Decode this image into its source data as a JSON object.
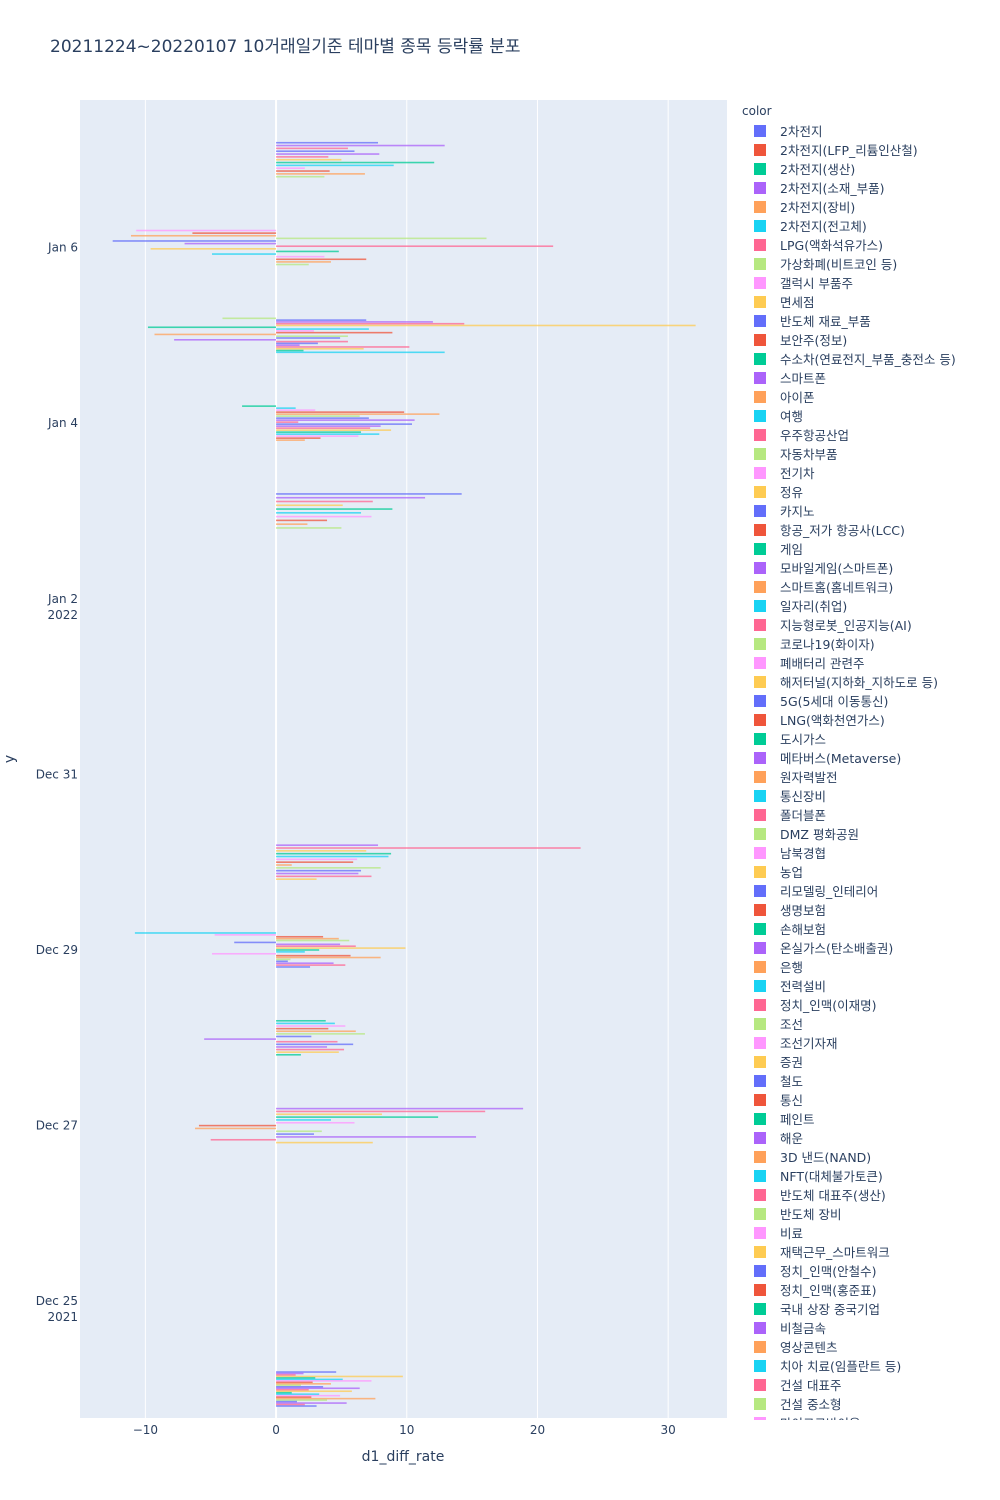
{
  "chart_data": {
    "type": "bar",
    "orientation": "horizontal",
    "title": "20211224~20220107 10거래일기준 테마별 종목 등락률 분포",
    "xlabel": "d1_diff_rate",
    "ylabel": "y",
    "legend_title": "color",
    "xlim": [
      -15,
      34.5
    ],
    "x_ticks": [
      -10,
      0,
      10,
      20,
      30
    ],
    "x_tick_labels": [
      "−10",
      "0",
      "10",
      "20",
      "30"
    ],
    "y_ticks": [
      {
        "day": 25,
        "label": [
          "Dec 25",
          "2021"
        ]
      },
      {
        "day": 27,
        "label": [
          "Dec 27"
        ]
      },
      {
        "day": 29,
        "label": [
          "Dec 29"
        ]
      },
      {
        "day": 31,
        "label": [
          "Dec 31"
        ]
      },
      {
        "day": 33,
        "label": [
          "Jan 2",
          "2022"
        ]
      },
      {
        "day": 35,
        "label": [
          "Jan 4"
        ]
      },
      {
        "day": 37,
        "label": [
          "Jan 6"
        ]
      }
    ],
    "ylim_days": [
      23.67,
      38.68
    ],
    "trading_days": [
      {
        "date": "2021-12-24",
        "day": 24,
        "values": [
          4.6,
          2.1,
          1.5,
          9.7,
          3.0,
          5.1,
          7.3,
          2.8,
          4.2,
          1.9,
          3.6,
          6.4,
          2.5,
          5.8,
          1.2,
          3.3,
          4.9,
          2.7,
          7.6,
          3.9,
          1.6,
          5.4,
          2.2,
          3.1
        ]
      },
      {
        "date": "2021-12-27",
        "day": 27,
        "values": [
          18.9,
          16.0,
          8.1,
          12.4,
          4.2,
          6.0,
          -5.9,
          -6.2,
          3.5,
          2.9,
          15.3,
          -5.0,
          7.4
        ]
      },
      {
        "date": "2021-12-28",
        "day": 28,
        "values": [
          3.8,
          4.5,
          5.3,
          4.0,
          6.1,
          6.8,
          2.7,
          -5.5,
          4.7,
          5.9,
          3.9,
          5.2,
          4.8,
          1.9
        ]
      },
      {
        "date": "2021-12-29",
        "day": 29,
        "values": [
          -10.8,
          -4.7,
          3.6,
          4.8,
          5.6,
          -3.2,
          4.9,
          6.1,
          9.9,
          3.3,
          2.2,
          -4.9,
          5.7,
          8.0,
          1.1,
          0.9,
          4.4,
          5.3,
          2.6
        ]
      },
      {
        "date": "2021-12-30",
        "day": 30,
        "values": [
          7.8,
          23.3,
          6.9,
          8.8,
          8.6,
          6.2,
          5.9,
          1.2,
          8.0,
          6.5,
          6.3,
          7.3,
          3.1
        ]
      },
      {
        "date": "2022-01-04",
        "day": 35,
        "values": [
          -2.6,
          1.5,
          3.0,
          9.8,
          12.5,
          6.4,
          7.1,
          10.6,
          1.7,
          10.4,
          8.0,
          7.2,
          8.8,
          6.5,
          7.9,
          6.3,
          3.4,
          2.2
        ]
      },
      {
        "date": "2022-01-05",
        "day": 36,
        "values": [
          -4.1,
          6.9,
          12.0,
          14.4,
          32.1,
          -9.8,
          7.1,
          2.9,
          8.9,
          -9.3,
          5.5,
          4.9,
          -7.8,
          5.5,
          3.2,
          1.8,
          10.2,
          6.7,
          2.1,
          12.9
        ]
      },
      {
        "date": "2022-01-06",
        "day": 37,
        "values": [
          -10.7,
          -6.4,
          -11.1,
          16.1,
          -12.5,
          -7.0,
          21.2,
          -9.6,
          4.8,
          -4.9,
          3.7,
          6.9,
          4.2,
          2.5
        ]
      },
      {
        "date": "2022-01-07",
        "day": 38,
        "values": [
          7.8,
          12.9,
          5.5,
          6.0,
          7.9,
          4.0,
          5.0,
          12.1,
          9.0,
          2.2,
          4.1,
          6.8,
          3.7
        ]
      },
      {
        "date": "2022-01-03",
        "day": 34,
        "values": [
          14.2,
          11.4,
          7.4,
          5.1,
          8.9,
          6.5,
          7.3,
          3.9,
          2.4,
          5.0
        ]
      }
    ],
    "series": [
      {
        "name": "2차전지",
        "color": "#636efa"
      },
      {
        "name": "2차전지(LFP_리튬인산철)",
        "color": "#EF553B"
      },
      {
        "name": "2차전지(생산)",
        "color": "#00cc96"
      },
      {
        "name": "2차전지(소재_부품)",
        "color": "#ab63fa"
      },
      {
        "name": "2차전지(장비)",
        "color": "#FFA15A"
      },
      {
        "name": "2차전지(전고체)",
        "color": "#19d3f3"
      },
      {
        "name": "LPG(액화석유가스)",
        "color": "#FF6692"
      },
      {
        "name": "가상화폐(비트코인 등)",
        "color": "#B6E880"
      },
      {
        "name": "갤럭시 부품주",
        "color": "#FF97FF"
      },
      {
        "name": "면세점",
        "color": "#FECB52"
      },
      {
        "name": "반도체 재료_부품",
        "color": "#636efa"
      },
      {
        "name": "보안주(정보)",
        "color": "#EF553B"
      },
      {
        "name": "수소차(연료전지_부품_충전소 등)",
        "color": "#00cc96"
      },
      {
        "name": "스마트폰",
        "color": "#ab63fa"
      },
      {
        "name": "아이폰",
        "color": "#FFA15A"
      },
      {
        "name": "여행",
        "color": "#19d3f3"
      },
      {
        "name": "우주항공산업",
        "color": "#FF6692"
      },
      {
        "name": "자동차부품",
        "color": "#B6E880"
      },
      {
        "name": "전기차",
        "color": "#FF97FF"
      },
      {
        "name": "정유",
        "color": "#FECB52"
      },
      {
        "name": "카지노",
        "color": "#636efa"
      },
      {
        "name": "항공_저가 항공사(LCC)",
        "color": "#EF553B"
      },
      {
        "name": "게임",
        "color": "#00cc96"
      },
      {
        "name": "모바일게임(스마트폰)",
        "color": "#ab63fa"
      },
      {
        "name": "스마트홈(홈네트워크)",
        "color": "#FFA15A"
      },
      {
        "name": "일자리(취업)",
        "color": "#19d3f3"
      },
      {
        "name": "지능형로봇_인공지능(AI)",
        "color": "#FF6692"
      },
      {
        "name": "코로나19(화이자)",
        "color": "#B6E880"
      },
      {
        "name": "폐배터리 관련주",
        "color": "#FF97FF"
      },
      {
        "name": "해저터널(지하화_지하도로 등)",
        "color": "#FECB52"
      },
      {
        "name": "5G(5세대 이동통신)",
        "color": "#636efa"
      },
      {
        "name": "LNG(액화천연가스)",
        "color": "#EF553B"
      },
      {
        "name": "도시가스",
        "color": "#00cc96"
      },
      {
        "name": "메타버스(Metaverse)",
        "color": "#ab63fa"
      },
      {
        "name": "원자력발전",
        "color": "#FFA15A"
      },
      {
        "name": "통신장비",
        "color": "#19d3f3"
      },
      {
        "name": "폴더블폰",
        "color": "#FF6692"
      },
      {
        "name": "DMZ 평화공원",
        "color": "#B6E880"
      },
      {
        "name": "남북경협",
        "color": "#FF97FF"
      },
      {
        "name": "농업",
        "color": "#FECB52"
      },
      {
        "name": "리모델링_인테리어",
        "color": "#636efa"
      },
      {
        "name": "생명보험",
        "color": "#EF553B"
      },
      {
        "name": "손해보험",
        "color": "#00cc96"
      },
      {
        "name": "온실가스(탄소배출권)",
        "color": "#ab63fa"
      },
      {
        "name": "은행",
        "color": "#FFA15A"
      },
      {
        "name": "전력설비",
        "color": "#19d3f3"
      },
      {
        "name": "정치_인맥(이재명)",
        "color": "#FF6692"
      },
      {
        "name": "조선",
        "color": "#B6E880"
      },
      {
        "name": "조선기자재",
        "color": "#FF97FF"
      },
      {
        "name": "증권",
        "color": "#FECB52"
      },
      {
        "name": "철도",
        "color": "#636efa"
      },
      {
        "name": "통신",
        "color": "#EF553B"
      },
      {
        "name": "페인트",
        "color": "#00cc96"
      },
      {
        "name": "해운",
        "color": "#ab63fa"
      },
      {
        "name": "3D 낸드(NAND)",
        "color": "#FFA15A"
      },
      {
        "name": "NFT(대체불가토큰)",
        "color": "#19d3f3"
      },
      {
        "name": "반도체 대표주(생산)",
        "color": "#FF6692"
      },
      {
        "name": "반도체 장비",
        "color": "#B6E880"
      },
      {
        "name": "비료",
        "color": "#FF97FF"
      },
      {
        "name": "재택근무_스마트워크",
        "color": "#FECB52"
      },
      {
        "name": "정치_인맥(안철수)",
        "color": "#636efa"
      },
      {
        "name": "정치_인맥(홍준표)",
        "color": "#EF553B"
      },
      {
        "name": "국내 상장 중국기업",
        "color": "#00cc96"
      },
      {
        "name": "비철금속",
        "color": "#ab63fa"
      },
      {
        "name": "영상콘텐츠",
        "color": "#FFA15A"
      },
      {
        "name": "치아 치료(임플란트 등)",
        "color": "#19d3f3"
      },
      {
        "name": "건설 대표주",
        "color": "#FF6692"
      },
      {
        "name": "건설 중소형",
        "color": "#B6E880"
      },
      {
        "name": "마이크로바이옴",
        "color": "#FF97FF"
      }
    ]
  }
}
